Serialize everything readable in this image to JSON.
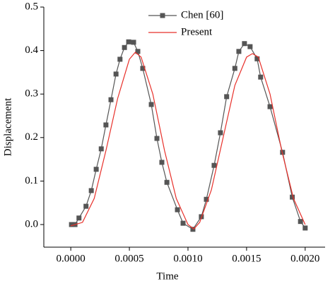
{
  "chart_data": {
    "type": "line",
    "x_label": "Time",
    "y_label": "Displacement",
    "xlim": [
      -0.00023,
      0.00217
    ],
    "ylim": [
      -0.052,
      0.5
    ],
    "xticks": [
      {
        "value": 0,
        "label": "0.0000"
      },
      {
        "value": 0.0005,
        "label": "0.0005"
      },
      {
        "value": 0.001,
        "label": "0.0010"
      },
      {
        "value": 0.0015,
        "label": "0.0015"
      },
      {
        "value": 0.002,
        "label": "0.0020"
      }
    ],
    "yticks": [
      {
        "value": 0,
        "label": "0.0"
      },
      0.1,
      0.2,
      0.3,
      0.4,
      0.5
    ],
    "legend": "upper center",
    "series": [
      {
        "name": "Chen [60]",
        "color": "#555555",
        "marker": "square",
        "x": [
          6e-06,
          3.6e-05,
          7e-05,
          0.00013,
          0.000175,
          0.000217,
          0.00026,
          0.0003,
          0.000343,
          0.000386,
          0.00042,
          0.000458,
          0.000494,
          0.000536,
          0.000572,
          0.000614,
          0.000687,
          0.000735,
          0.000777,
          0.00082,
          0.00091,
          0.000958,
          0.001042,
          0.001114,
          0.001157,
          0.001223,
          0.001277,
          0.00133,
          0.0014,
          0.001434,
          0.001482,
          0.00153,
          0.00159,
          0.00162,
          0.0017,
          0.001807,
          0.00189,
          0.00196,
          0.002
        ],
        "values": [
          0.0,
          0.0,
          0.015,
          0.042,
          0.078,
          0.127,
          0.174,
          0.229,
          0.287,
          0.346,
          0.38,
          0.407,
          0.42,
          0.419,
          0.398,
          0.359,
          0.276,
          0.198,
          0.143,
          0.097,
          0.034,
          0.003,
          -0.011,
          0.018,
          0.058,
          0.136,
          0.211,
          0.294,
          0.359,
          0.398,
          0.416,
          0.409,
          0.381,
          0.339,
          0.271,
          0.166,
          0.063,
          0.007,
          -0.008
        ]
      },
      {
        "name": "Present",
        "color": "#e8302a",
        "marker": "none",
        "x": [
          0,
          0.0001,
          0.0002,
          0.0003,
          0.0004,
          0.0005,
          0.00055,
          0.0006,
          0.0007,
          0.0008,
          0.0009,
          0.001,
          0.00105,
          0.0011,
          0.0012,
          0.0013,
          0.0014,
          0.0015,
          0.00155,
          0.0016,
          0.0017,
          0.0018,
          0.0019,
          0.002
        ],
        "values": [
          -0.003,
          0.005,
          0.06,
          0.17,
          0.29,
          0.38,
          0.396,
          0.385,
          0.3,
          0.17,
          0.06,
          0.0,
          -0.01,
          0.005,
          0.08,
          0.2,
          0.32,
          0.385,
          0.393,
          0.385,
          0.3,
          0.17,
          0.06,
          0.0
        ]
      }
    ]
  }
}
